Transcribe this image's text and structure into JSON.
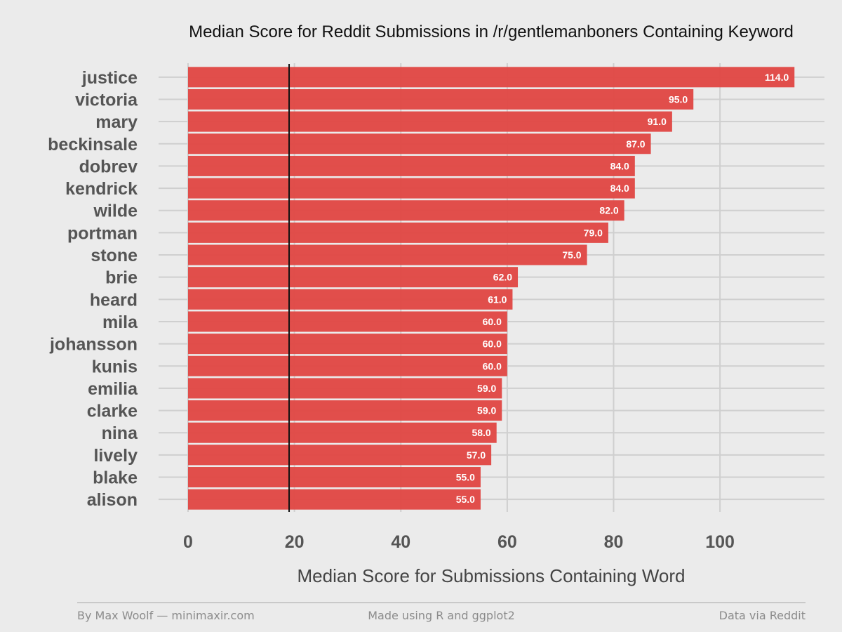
{
  "chart_data": {
    "type": "bar",
    "orientation": "horizontal",
    "title": "Median Score for Reddit Submissions in /r/gentlemanboners Containing Keyword",
    "xlabel": "Median Score for Submissions Containing Word",
    "ylabel": "",
    "categories": [
      "justice",
      "victoria",
      "mary",
      "beckinsale",
      "dobrev",
      "kendrick",
      "wilde",
      "portman",
      "stone",
      "brie",
      "heard",
      "mila",
      "johansson",
      "kunis",
      "emilia",
      "clarke",
      "nina",
      "lively",
      "blake",
      "alison"
    ],
    "values": [
      114,
      95,
      91,
      87,
      84,
      84,
      82,
      79,
      75,
      62,
      61,
      60,
      60,
      60,
      59,
      59,
      58,
      57,
      55,
      55
    ],
    "value_labels": [
      "114.0",
      "95.0",
      "91.0",
      "87.0",
      "84.0",
      "84.0",
      "82.0",
      "79.0",
      "75.0",
      "62.0",
      "61.0",
      "60.0",
      "60.0",
      "60.0",
      "59.0",
      "59.0",
      "58.0",
      "57.0",
      "55.0",
      "55.0"
    ],
    "xlim": [
      0,
      117
    ],
    "xticks": [
      0,
      20,
      40,
      60,
      80,
      100
    ],
    "reference_line": 19,
    "bar_color": "#e04845",
    "grid": true
  },
  "footer": {
    "left": "By Max Woolf — minimaxir.com",
    "center": "Made using R and ggplot2",
    "right": "Data via Reddit"
  }
}
